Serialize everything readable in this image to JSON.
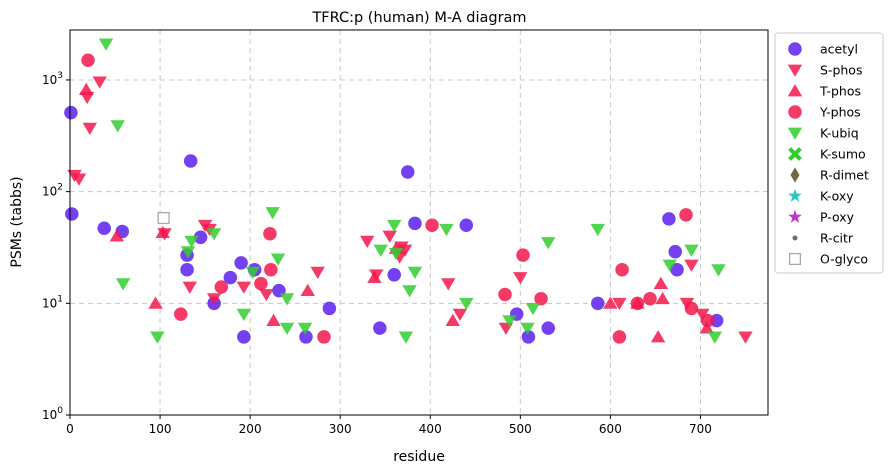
{
  "chart_data": {
    "type": "scatter",
    "title": "TFRC:p (human) M-A diagram",
    "xlabel": "residue",
    "ylabel": "PSMs (tabbs)",
    "xlim": [
      0,
      775
    ],
    "ylim": [
      1,
      2800
    ],
    "yscale": "log",
    "xticks": [
      0,
      100,
      200,
      300,
      400,
      500,
      600,
      700
    ],
    "yticks": [
      {
        "value": 1,
        "base": "10",
        "exp": "0"
      },
      {
        "value": 10,
        "base": "10",
        "exp": "1"
      },
      {
        "value": 100,
        "base": "10",
        "exp": "2"
      },
      {
        "value": 1000,
        "base": "10",
        "exp": "3"
      }
    ],
    "grid": true,
    "legend_position": "outside-right",
    "series": [
      {
        "name": "acetyl",
        "marker": "circle",
        "color": "#5b1ff0",
        "points": [
          [
            1,
            510
          ],
          [
            2,
            63
          ],
          [
            38,
            47
          ],
          [
            58,
            44
          ],
          [
            130,
            27
          ],
          [
            130,
            20
          ],
          [
            134,
            188
          ],
          [
            145,
            39
          ],
          [
            160,
            10
          ],
          [
            178,
            17
          ],
          [
            190,
            23
          ],
          [
            193,
            5
          ],
          [
            205,
            20
          ],
          [
            232,
            13
          ],
          [
            262,
            5
          ],
          [
            288,
            9
          ],
          [
            344,
            6
          ],
          [
            360,
            18
          ],
          [
            375,
            150
          ],
          [
            383,
            52
          ],
          [
            440,
            50
          ],
          [
            496,
            8
          ],
          [
            509,
            5
          ],
          [
            531,
            6
          ],
          [
            586,
            10
          ],
          [
            665,
            57
          ],
          [
            672,
            29
          ],
          [
            674,
            20
          ],
          [
            718,
            7
          ]
        ]
      },
      {
        "name": "S-phos",
        "marker": "triangle-down",
        "color": "#f5174d",
        "points": [
          [
            5,
            140
          ],
          [
            10,
            130
          ],
          [
            19,
            700
          ],
          [
            22,
            370
          ],
          [
            33,
            960
          ],
          [
            105,
            42
          ],
          [
            133,
            14
          ],
          [
            150,
            50
          ],
          [
            155,
            46
          ],
          [
            160,
            11
          ],
          [
            193,
            14
          ],
          [
            218,
            12
          ],
          [
            275,
            19
          ],
          [
            330,
            36
          ],
          [
            340,
            18
          ],
          [
            355,
            40
          ],
          [
            366,
            26
          ],
          [
            368,
            32
          ],
          [
            372,
            30
          ],
          [
            420,
            15
          ],
          [
            433,
            8
          ],
          [
            484,
            6
          ],
          [
            500,
            17
          ],
          [
            610,
            10
          ],
          [
            685,
            10
          ],
          [
            690,
            22
          ],
          [
            702,
            8
          ],
          [
            750,
            5
          ]
        ]
      },
      {
        "name": "T-phos",
        "marker": "triangle-up",
        "color": "#f5174d",
        "points": [
          [
            18,
            820
          ],
          [
            52,
            40
          ],
          [
            95,
            10
          ],
          [
            103,
            43
          ],
          [
            226,
            7
          ],
          [
            264,
            13
          ],
          [
            338,
            17
          ],
          [
            362,
            31
          ],
          [
            425,
            7
          ],
          [
            600,
            10
          ],
          [
            630,
            10
          ],
          [
            653,
            5
          ],
          [
            656,
            15
          ],
          [
            658,
            11
          ],
          [
            707,
            6
          ]
        ]
      },
      {
        "name": "Y-phos",
        "marker": "circle",
        "color": "#f5174d",
        "points": [
          [
            20,
            1500
          ],
          [
            123,
            8
          ],
          [
            168,
            14
          ],
          [
            212,
            15
          ],
          [
            222,
            42
          ],
          [
            223,
            20
          ],
          [
            282,
            5
          ],
          [
            402,
            50
          ],
          [
            483,
            12
          ],
          [
            503,
            27
          ],
          [
            523,
            11
          ],
          [
            610,
            5
          ],
          [
            613,
            20
          ],
          [
            630,
            10
          ],
          [
            644,
            11
          ],
          [
            684,
            62
          ],
          [
            690,
            9
          ],
          [
            708,
            7
          ]
        ]
      },
      {
        "name": "K-ubiq",
        "marker": "triangle-down",
        "color": "#33cc2f",
        "points": [
          [
            40,
            2100
          ],
          [
            53,
            390
          ],
          [
            59,
            15
          ],
          [
            97,
            5
          ],
          [
            131,
            29
          ],
          [
            135,
            36
          ],
          [
            160,
            42
          ],
          [
            193,
            8
          ],
          [
            203,
            19
          ],
          [
            225,
            65
          ],
          [
            231,
            25
          ],
          [
            241,
            11
          ],
          [
            241,
            6
          ],
          [
            261,
            6
          ],
          [
            345,
            30
          ],
          [
            360,
            50
          ],
          [
            362,
            28
          ],
          [
            373,
            5
          ],
          [
            377,
            13
          ],
          [
            383,
            19
          ],
          [
            418,
            46
          ],
          [
            440,
            10
          ],
          [
            488,
            7
          ],
          [
            508,
            6
          ],
          [
            514,
            9
          ],
          [
            531,
            35
          ],
          [
            586,
            46
          ],
          [
            666,
            22
          ],
          [
            690,
            30
          ],
          [
            716,
            5
          ],
          [
            720,
            20
          ]
        ]
      },
      {
        "name": "K-sumo",
        "marker": "x",
        "color": "#33cc2f",
        "points": []
      },
      {
        "name": "R-dimet",
        "marker": "diamond",
        "color": "#6b6b3f",
        "points": []
      },
      {
        "name": "K-oxy",
        "marker": "star",
        "color": "#2ec4cc",
        "points": []
      },
      {
        "name": "P-oxy",
        "marker": "star",
        "color": "#c236c8",
        "points": []
      },
      {
        "name": "R-citr",
        "marker": "dot",
        "color": "#6f6f6f",
        "points": []
      },
      {
        "name": "O-glyco",
        "marker": "square-open",
        "color": "#a9a9a9",
        "points": [
          [
            104,
            58
          ]
        ]
      }
    ]
  }
}
